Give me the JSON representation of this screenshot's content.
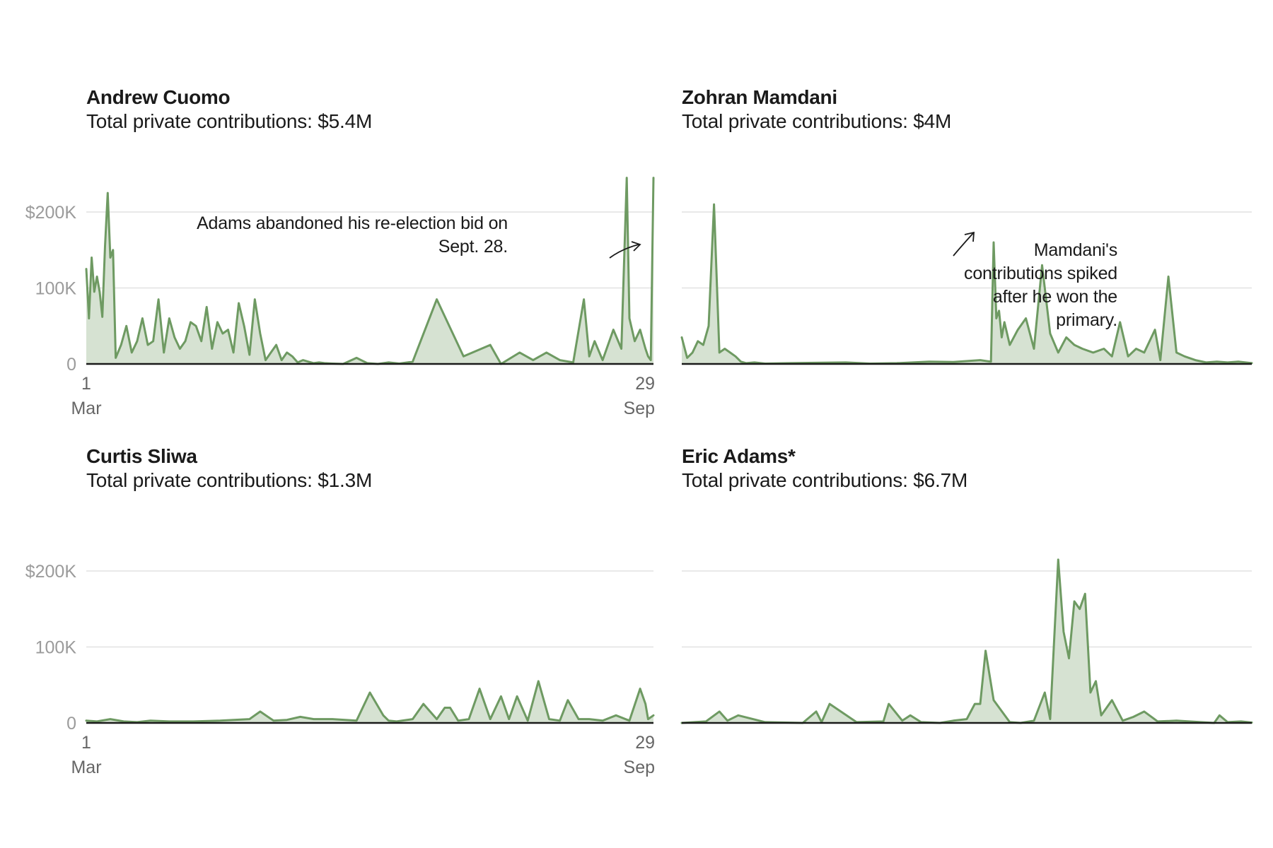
{
  "chart_data": [
    {
      "type": "area",
      "title": "Andrew Cuomo",
      "subtitle": "Total private contributions: $5.4M",
      "annotation": "Adams abandoned his re-election bid on Sept. 28.",
      "annotation_lines": [
        "Adams abandoned his re-election bid on",
        "Sept. 28."
      ],
      "x_ticks": [
        {
          "label": "1",
          "sub": "Mar",
          "date": "Mar 1"
        },
        {
          "label": "29",
          "sub": "Sep",
          "date": "Sep 29"
        }
      ],
      "y_ticks": [
        "0",
        "100K",
        "$200K"
      ],
      "ylim": [
        0,
        240000
      ],
      "xlim": [
        "Mar 1",
        "Sep 29"
      ],
      "color": "#6e9a62",
      "fill": "#d6e2d2",
      "series": [
        {
          "x": [
            "Mar 1",
            "Mar 2",
            "Mar 3",
            "Mar 4",
            "Mar 5",
            "Mar 6",
            "Mar 7",
            "Mar 8",
            "Mar 9",
            "Mar 10",
            "Mar 11",
            "Mar 12",
            "Mar 14",
            "Mar 16",
            "Mar 18",
            "Mar 20",
            "Mar 22",
            "Mar 24",
            "Mar 26",
            "Mar 28",
            "Mar 30",
            "Apr 1",
            "Apr 3",
            "Apr 5",
            "Apr 7",
            "Apr 9",
            "Apr 11",
            "Apr 13",
            "Apr 15",
            "Apr 17",
            "Apr 19",
            "Apr 21",
            "Apr 23",
            "Apr 25",
            "Apr 27",
            "Apr 29",
            "May 1",
            "May 3",
            "May 5",
            "May 7",
            "May 9",
            "May 11",
            "May 13",
            "May 15",
            "May 17",
            "May 19",
            "May 21",
            "May 23",
            "May 25",
            "May 27",
            "May 29",
            "Jun 1",
            "Jun 5",
            "Jun 10",
            "Jun 14",
            "Jun 18",
            "Jun 22",
            "Jun 26",
            "Jul 1",
            "Jul 10",
            "Jul 20",
            "Jul 30",
            "Aug 3",
            "Aug 10",
            "Aug 15",
            "Aug 20",
            "Aug 25",
            "Aug 30",
            "Sep 3",
            "Sep 5",
            "Sep 7",
            "Sep 10",
            "Sep 14",
            "Sep 17",
            "Sep 19",
            "Sep 20",
            "Sep 22",
            "Sep 24",
            "Sep 26",
            "Sep 27",
            "Sep 28",
            "Sep 29"
          ],
          "values": [
            125000,
            60000,
            140000,
            95000,
            115000,
            95000,
            62000,
            155000,
            225000,
            140000,
            150000,
            8000,
            25000,
            50000,
            15000,
            30000,
            60000,
            25000,
            30000,
            85000,
            15000,
            60000,
            35000,
            20000,
            30000,
            55000,
            50000,
            30000,
            75000,
            20000,
            55000,
            40000,
            45000,
            15000,
            80000,
            50000,
            12000,
            85000,
            40000,
            5000,
            15000,
            25000,
            5000,
            15000,
            10000,
            2000,
            5000,
            3000,
            1000,
            2000,
            1000,
            500,
            0,
            8000,
            1000,
            0,
            2000,
            500,
            3000,
            85000,
            10000,
            25000,
            0,
            15000,
            5000,
            15000,
            5000,
            2000,
            85000,
            10000,
            30000,
            5000,
            45000,
            20000,
            245000,
            60000,
            30000,
            45000,
            20000,
            10000,
            5000,
            245000
          ]
        }
      ]
    },
    {
      "type": "area",
      "title": "Zohran Mamdani",
      "subtitle": "Total private contributions: $4M",
      "annotation": "Mamdani's contributions spiked after he won the primary.",
      "annotation_lines": [
        "Mamdani's",
        "contributions spiked",
        "after he won the",
        "primary."
      ],
      "ylim": [
        0,
        240000
      ],
      "xlim": [
        "Mar 1",
        "Sep 29"
      ],
      "color": "#6e9a62",
      "fill": "#d6e2d2",
      "series": [
        {
          "x": [
            "Mar 1",
            "Mar 3",
            "Mar 5",
            "Mar 7",
            "Mar 9",
            "Mar 11",
            "Mar 13",
            "Mar 15",
            "Mar 17",
            "Mar 19",
            "Mar 21",
            "Mar 23",
            "Mar 25",
            "Mar 28",
            "Apr 1",
            "Apr 10",
            "Apr 20",
            "May 1",
            "May 10",
            "May 20",
            "Jun 1",
            "Jun 10",
            "Jun 20",
            "Jun 24",
            "Jun 25",
            "Jun 26",
            "Jun 27",
            "Jun 28",
            "Jun 29",
            "Jul 1",
            "Jul 4",
            "Jul 7",
            "Jul 10",
            "Jul 13",
            "Jul 16",
            "Jul 19",
            "Jul 22",
            "Jul 25",
            "Jul 28",
            "Aug 1",
            "Aug 5",
            "Aug 8",
            "Aug 11",
            "Aug 14",
            "Aug 17",
            "Aug 20",
            "Aug 24",
            "Aug 26",
            "Aug 29",
            "Sep 1",
            "Sep 4",
            "Sep 8",
            "Sep 12",
            "Sep 16",
            "Sep 20",
            "Sep 24",
            "Sep 29"
          ],
          "values": [
            35000,
            8000,
            15000,
            30000,
            25000,
            50000,
            210000,
            15000,
            20000,
            15000,
            10000,
            3000,
            1000,
            2000,
            500,
            1000,
            1500,
            2000,
            500,
            1000,
            3000,
            2500,
            5000,
            3000,
            160000,
            60000,
            70000,
            35000,
            55000,
            25000,
            45000,
            60000,
            20000,
            130000,
            40000,
            15000,
            35000,
            25000,
            20000,
            15000,
            20000,
            10000,
            55000,
            10000,
            20000,
            15000,
            45000,
            5000,
            115000,
            15000,
            10000,
            5000,
            2000,
            3000,
            2000,
            3000,
            1000
          ]
        }
      ]
    },
    {
      "type": "area",
      "title": "Curtis Sliwa",
      "subtitle": "Total private contributions: $1.3M",
      "x_ticks": [
        {
          "label": "1",
          "sub": "Mar",
          "date": "Mar 1"
        },
        {
          "label": "29",
          "sub": "Sep",
          "date": "Sep 29"
        }
      ],
      "y_ticks": [
        "0",
        "100K",
        "$200K"
      ],
      "ylim": [
        0,
        240000
      ],
      "xlim": [
        "Mar 1",
        "Sep 29"
      ],
      "color": "#6e9a62",
      "fill": "#d6e2d2",
      "series": [
        {
          "x": [
            "Mar 1",
            "Mar 5",
            "Mar 10",
            "Mar 15",
            "Mar 20",
            "Mar 25",
            "Apr 1",
            "Apr 10",
            "Apr 20",
            "May 1",
            "May 5",
            "May 10",
            "May 15",
            "May 20",
            "May 25",
            "Jun 1",
            "Jun 10",
            "Jun 15",
            "Jun 20",
            "Jun 22",
            "Jun 25",
            "Jul 1",
            "Jul 5",
            "Jul 10",
            "Jul 13",
            "Jul 15",
            "Jul 18",
            "Jul 22",
            "Jul 26",
            "Jul 30",
            "Aug 3",
            "Aug 6",
            "Aug 9",
            "Aug 13",
            "Aug 17",
            "Aug 21",
            "Aug 25",
            "Aug 28",
            "Sep 1",
            "Sep 5",
            "Sep 10",
            "Sep 15",
            "Sep 20",
            "Sep 24",
            "Sep 26",
            "Sep 27",
            "Sep 29"
          ],
          "values": [
            3000,
            2000,
            5000,
            2000,
            1000,
            3000,
            2000,
            2000,
            3000,
            5000,
            15000,
            3000,
            4000,
            8000,
            5000,
            5000,
            3000,
            40000,
            10000,
            3000,
            2000,
            5000,
            25000,
            5000,
            20000,
            20000,
            3000,
            5000,
            45000,
            5000,
            35000,
            5000,
            35000,
            3000,
            55000,
            5000,
            3000,
            30000,
            5000,
            5000,
            3000,
            10000,
            3000,
            45000,
            25000,
            5000,
            10000
          ]
        }
      ]
    },
    {
      "type": "area",
      "title": "Eric Adams*",
      "subtitle": "Total private contributions: $6.7M",
      "ylim": [
        0,
        240000
      ],
      "xlim": [
        "Mar 1",
        "Sep 29"
      ],
      "color": "#6e9a62",
      "fill": "#d6e2d2",
      "series": [
        {
          "x": [
            "Mar 1",
            "Mar 10",
            "Mar 15",
            "Mar 18",
            "Mar 22",
            "Apr 1",
            "Apr 15",
            "Apr 20",
            "Apr 22",
            "Apr 25",
            "May 5",
            "May 15",
            "May 17",
            "May 22",
            "May 25",
            "May 29",
            "Jun 5",
            "Jun 10",
            "Jun 15",
            "Jun 18",
            "Jun 20",
            "Jun 22",
            "Jun 25",
            "Jul 1",
            "Jul 5",
            "Jul 10",
            "Jul 14",
            "Jul 16",
            "Jul 19",
            "Jul 21",
            "Jul 23",
            "Jul 25",
            "Jul 27",
            "Jul 29",
            "Jul 31",
            "Aug 2",
            "Aug 4",
            "Aug 8",
            "Aug 12",
            "Aug 16",
            "Aug 20",
            "Aug 25",
            "Sep 1",
            "Sep 10",
            "Sep 15",
            "Sep 17",
            "Sep 20",
            "Sep 25",
            "Sep 29"
          ],
          "values": [
            0,
            2000,
            15000,
            3000,
            10000,
            1000,
            0,
            15000,
            1000,
            25000,
            1000,
            2000,
            25000,
            3000,
            10000,
            1000,
            0,
            3000,
            5000,
            25000,
            25000,
            95000,
            30000,
            1000,
            0,
            3000,
            40000,
            5000,
            215000,
            120000,
            85000,
            160000,
            150000,
            170000,
            40000,
            55000,
            10000,
            30000,
            3000,
            8000,
            15000,
            2000,
            3000,
            1000,
            0,
            10000,
            1000,
            2000,
            500
          ]
        }
      ]
    }
  ]
}
